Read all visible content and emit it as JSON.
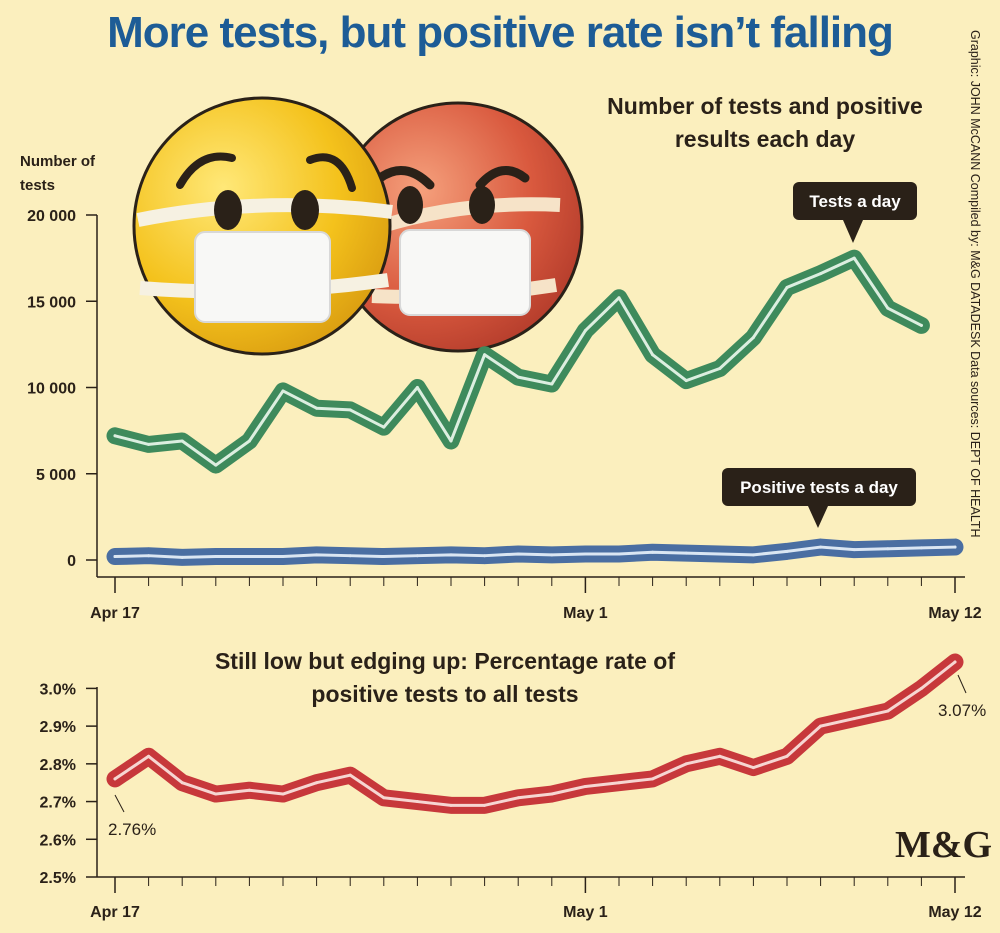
{
  "headline": "More tests, but positive rate isn’t falling",
  "credit": "Graphic: JOHN McCANN  Compiled by: M&G DATADESK  Data sources: DEPT OF HEALTH",
  "logo": "M&G",
  "colors": {
    "tests": "#3e8a5c",
    "positive": "#4a6ea2",
    "rate": "#c7383b",
    "headline": "#1d5c96",
    "background": "#fbefbe"
  },
  "chart_data": [
    {
      "type": "line",
      "title": "Number of tests and positive results each day",
      "ylabel": "Number of tests",
      "ylim": [
        0,
        20000
      ],
      "yticks": [
        "20 000",
        "15 000",
        "10 000",
        "5 000",
        "0"
      ],
      "ytick_values": [
        20000,
        15000,
        10000,
        5000,
        0
      ],
      "xtick_labels": [
        "Apr 17",
        "May 1",
        "May 12"
      ],
      "xtick_days": [
        0,
        14,
        25
      ],
      "series": [
        {
          "name": "Tests a day",
          "x": [
            0,
            1,
            2,
            3,
            4,
            5,
            6,
            7,
            8,
            9,
            10,
            11,
            12,
            13,
            14,
            15,
            16,
            17,
            18,
            19,
            20,
            21,
            22,
            23,
            24,
            25
          ],
          "values": [
            7200,
            6700,
            6900,
            5500,
            6900,
            9800,
            8800,
            8700,
            7700,
            10000,
            6900,
            11900,
            10600,
            10200,
            13300,
            15200,
            11900,
            10400,
            11100,
            12900,
            15800,
            16600,
            17500,
            14600,
            13600,
            null
          ]
        },
        {
          "name": "Positive tests a day",
          "x": [
            0,
            1,
            2,
            3,
            4,
            5,
            6,
            7,
            8,
            9,
            10,
            11,
            12,
            13,
            14,
            15,
            16,
            17,
            18,
            19,
            20,
            21,
            22,
            23,
            24,
            25
          ],
          "values": [
            200,
            250,
            150,
            200,
            200,
            200,
            300,
            250,
            200,
            250,
            300,
            250,
            350,
            300,
            350,
            350,
            450,
            400,
            350,
            300,
            500,
            750,
            600,
            650,
            700,
            750
          ]
        }
      ]
    },
    {
      "type": "line",
      "title": "Still low but edging up: Percentage rate of positive tests to all tests",
      "ylim": [
        2.5,
        3.07
      ],
      "yticks": [
        "3.0%",
        "2.9%",
        "2.8%",
        "2.7%",
        "2.6%",
        "2.5%"
      ],
      "ytick_values": [
        3.0,
        2.9,
        2.8,
        2.7,
        2.6,
        2.5
      ],
      "xtick_labels": [
        "Apr 17",
        "May 1",
        "May 12"
      ],
      "xtick_days": [
        0,
        14,
        25
      ],
      "series": [
        {
          "name": "Positive rate",
          "x": [
            0,
            1,
            2,
            3,
            4,
            5,
            6,
            7,
            8,
            9,
            10,
            11,
            12,
            13,
            14,
            15,
            16,
            17,
            18,
            19,
            20,
            21,
            22,
            23,
            24,
            25
          ],
          "values": [
            2.76,
            2.82,
            2.75,
            2.72,
            2.73,
            2.72,
            2.75,
            2.77,
            2.71,
            2.7,
            2.69,
            2.69,
            2.71,
            2.72,
            2.74,
            2.75,
            2.76,
            2.8,
            2.82,
            2.79,
            2.82,
            2.9,
            2.92,
            2.94,
            3.0,
            3.07
          ]
        }
      ],
      "annotations": [
        "2.76%",
        "3.07%"
      ]
    }
  ]
}
